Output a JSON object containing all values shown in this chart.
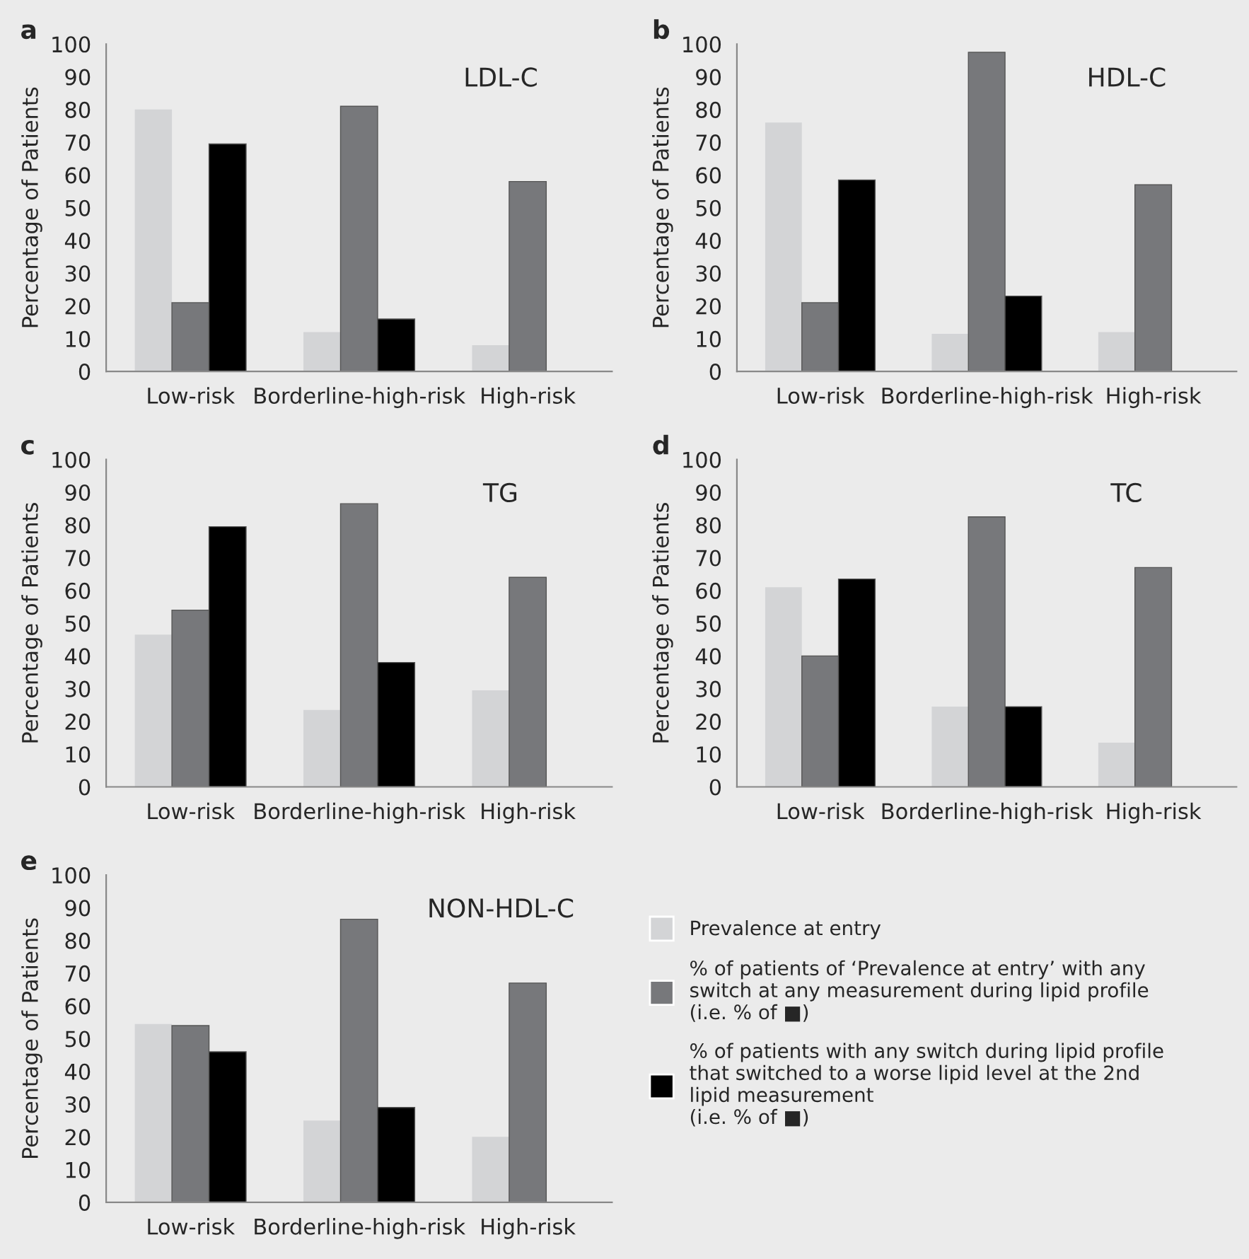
{
  "chart_data": [
    {
      "type": "bar",
      "title": "LDL-C",
      "annotations": [
        "a"
      ],
      "ylabel": "Percentage of Patients",
      "categories": [
        "Low-risk",
        "Borderline-high-risk",
        "High-risk"
      ],
      "ylim": [
        0,
        100
      ],
      "yticks": [
        0,
        10,
        20,
        30,
        40,
        50,
        60,
        70,
        80,
        90,
        100
      ],
      "grid": false,
      "legend": false,
      "series": [
        {
          "color": "#d3d4d6",
          "values": [
            80,
            12,
            8
          ]
        },
        {
          "color": "#77787b",
          "values": [
            21,
            81,
            58
          ]
        },
        {
          "color": "#000000",
          "values": [
            69.5,
            16,
            null
          ]
        }
      ]
    },
    {
      "type": "bar",
      "title": "HDL-C",
      "annotations": [
        "b"
      ],
      "ylabel": "Percentage of Patients",
      "categories": [
        "Low-risk",
        "Borderline-high-risk",
        "High-risk"
      ],
      "ylim": [
        0,
        100
      ],
      "yticks": [
        0,
        10,
        20,
        30,
        40,
        50,
        60,
        70,
        80,
        90,
        100
      ],
      "grid": false,
      "legend": false,
      "series": [
        {
          "color": "#d3d4d6",
          "values": [
            76,
            11.5,
            12
          ]
        },
        {
          "color": "#77787b",
          "values": [
            21,
            97.5,
            57
          ]
        },
        {
          "color": "#000000",
          "values": [
            58.5,
            23,
            null
          ]
        }
      ]
    },
    {
      "type": "bar",
      "title": "TG",
      "annotations": [
        "c"
      ],
      "ylabel": "Percentage of Patients",
      "categories": [
        "Low-risk",
        "Borderline-high-risk",
        "High-risk"
      ],
      "ylim": [
        0,
        100
      ],
      "yticks": [
        0,
        10,
        20,
        30,
        40,
        50,
        60,
        70,
        80,
        90,
        100
      ],
      "grid": false,
      "legend": false,
      "series": [
        {
          "color": "#d3d4d6",
          "values": [
            46.5,
            23.5,
            29.5
          ]
        },
        {
          "color": "#77787b",
          "values": [
            54,
            86.5,
            64
          ]
        },
        {
          "color": "#000000",
          "values": [
            79.5,
            38,
            null
          ]
        }
      ]
    },
    {
      "type": "bar",
      "title": "TC",
      "annotations": [
        "d"
      ],
      "ylabel": "Percentage of Patients",
      "categories": [
        "Low-risk",
        "Borderline-high-risk",
        "High-risk"
      ],
      "ylim": [
        0,
        100
      ],
      "yticks": [
        0,
        10,
        20,
        30,
        40,
        50,
        60,
        70,
        80,
        90,
        100
      ],
      "grid": false,
      "legend": false,
      "series": [
        {
          "color": "#d3d4d6",
          "values": [
            61,
            24.5,
            13.5
          ]
        },
        {
          "color": "#77787b",
          "values": [
            40,
            82.5,
            67
          ]
        },
        {
          "color": "#000000",
          "values": [
            63.5,
            24.5,
            null
          ]
        }
      ]
    },
    {
      "type": "bar",
      "title": "NON-HDL-C",
      "annotations": [
        "e"
      ],
      "ylabel": "Percentage of Patients",
      "categories": [
        "Low-risk",
        "Borderline-high-risk",
        "High-risk"
      ],
      "ylim": [
        0,
        100
      ],
      "yticks": [
        0,
        10,
        20,
        30,
        40,
        50,
        60,
        70,
        80,
        90,
        100
      ],
      "grid": false,
      "legend": "right",
      "series": [
        {
          "name": "Prevalence at entry",
          "color": "#d3d4d6",
          "values": [
            54.5,
            25,
            20
          ]
        },
        {
          "name": "% of patients of ‘Prevalence at entry’ with any\nswitch at any measurement during lipid profile\n(i.e. % of ■)",
          "color": "#77787b",
          "values": [
            54,
            86.5,
            67
          ]
        },
        {
          "name": "% of patients with any switch during lipid profile\nthat switched to a worse lipid level at the 2nd\nlipid measurement\n(i.e. % of ■)",
          "color": "#000000",
          "values": [
            46,
            29,
            null
          ]
        }
      ]
    }
  ]
}
